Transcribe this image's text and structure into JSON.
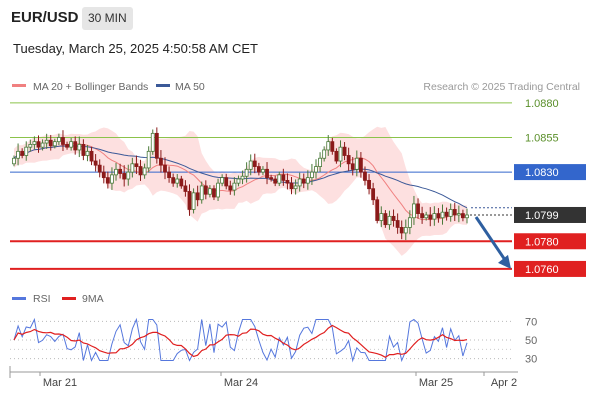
{
  "header": {
    "symbol": "EUR/USD",
    "timeframe": "30 MIN",
    "datetime": "Tuesday, March 25, 2025 4:50:58 AM CET"
  },
  "legend": {
    "ma20_label": "MA 20 + Bollinger Bands",
    "ma50_label": "MA 50",
    "copyright": "Research © 2025 Trading Central",
    "rsi_label": "RSI",
    "rsi9_label": "9MA"
  },
  "colors": {
    "ma20": "#f08080",
    "ma50": "#3b5998",
    "bollinger": "#fde0e0",
    "up_candle": "#4a7a3a",
    "down_candle": "#8b1a1a",
    "resistance": "#8bc34a",
    "support": "#e02020",
    "pivot": "#3366cc",
    "arrow": "#2e5fa0",
    "rsi": "#5577dd",
    "rsi_ma": "#e02020"
  },
  "chart_data": {
    "type": "candlestick",
    "price_axis": {
      "min": 1.0752,
      "max": 1.0885
    },
    "levels": [
      {
        "value": 1.088,
        "label": "1.0880",
        "kind": "resistance"
      },
      {
        "value": 1.0855,
        "label": "1.0855",
        "kind": "resistance"
      },
      {
        "value": 1.083,
        "label": "1.0830",
        "kind": "pivot"
      },
      {
        "value": 1.078,
        "label": "1.0780",
        "kind": "support"
      },
      {
        "value": 1.076,
        "label": "1.0760",
        "kind": "support"
      }
    ],
    "last_price": {
      "value": 1.0799,
      "label": "1.0799"
    },
    "x_ticks": [
      "Mar 21",
      "Mar 24",
      "Mar 25",
      "Apr 2"
    ],
    "candles_close": [
      1.084,
      1.0845,
      1.0842,
      1.0848,
      1.085,
      1.0852,
      1.0848,
      1.0851,
      1.0853,
      1.0849,
      1.0852,
      1.0855,
      1.085,
      1.0848,
      1.0852,
      1.0846,
      1.085,
      1.0842,
      1.0845,
      1.0838,
      1.0835,
      1.083,
      1.0826,
      1.0822,
      1.0828,
      1.0832,
      1.0829,
      1.0825,
      1.083,
      1.0836,
      1.0834,
      1.0828,
      1.0833,
      1.0845,
      1.0858,
      1.084,
      1.0835,
      1.083,
      1.0826,
      1.0822,
      1.0825,
      1.082,
      1.0816,
      1.0803,
      1.0815,
      1.081,
      1.082,
      1.0814,
      1.0818,
      1.0812,
      1.0822,
      1.0826,
      1.082,
      1.0817,
      1.0822,
      1.0825,
      1.0827,
      1.0832,
      1.0838,
      1.0834,
      1.083,
      1.0832,
      1.0826,
      1.0825,
      1.0822,
      1.0828,
      1.0824,
      1.0822,
      1.0818,
      1.082,
      1.0825,
      1.0822,
      1.0826,
      1.083,
      1.0834,
      1.084,
      1.0846,
      1.0852,
      1.0845,
      1.0838,
      1.0848,
      1.0842,
      1.0836,
      1.0832,
      1.084,
      1.083,
      1.0824,
      1.0818,
      1.081,
      1.0795,
      1.08,
      1.0792,
      1.0798,
      1.0795,
      1.079,
      1.0786,
      1.079,
      1.0797,
      1.0807,
      1.08,
      1.0797,
      1.0799,
      1.0796,
      1.08,
      1.0797,
      1.0801,
      1.0798,
      1.0803,
      1.0799,
      1.08,
      1.0797,
      1.0799
    ],
    "projection": {
      "from": 1.0799,
      "to": 1.076
    },
    "rsi_axis": {
      "min": 20,
      "max": 80,
      "ticks": [
        70,
        50,
        30
      ],
      "tick_labels": [
        "70",
        "50",
        "30"
      ]
    },
    "rsi_last": 47
  }
}
